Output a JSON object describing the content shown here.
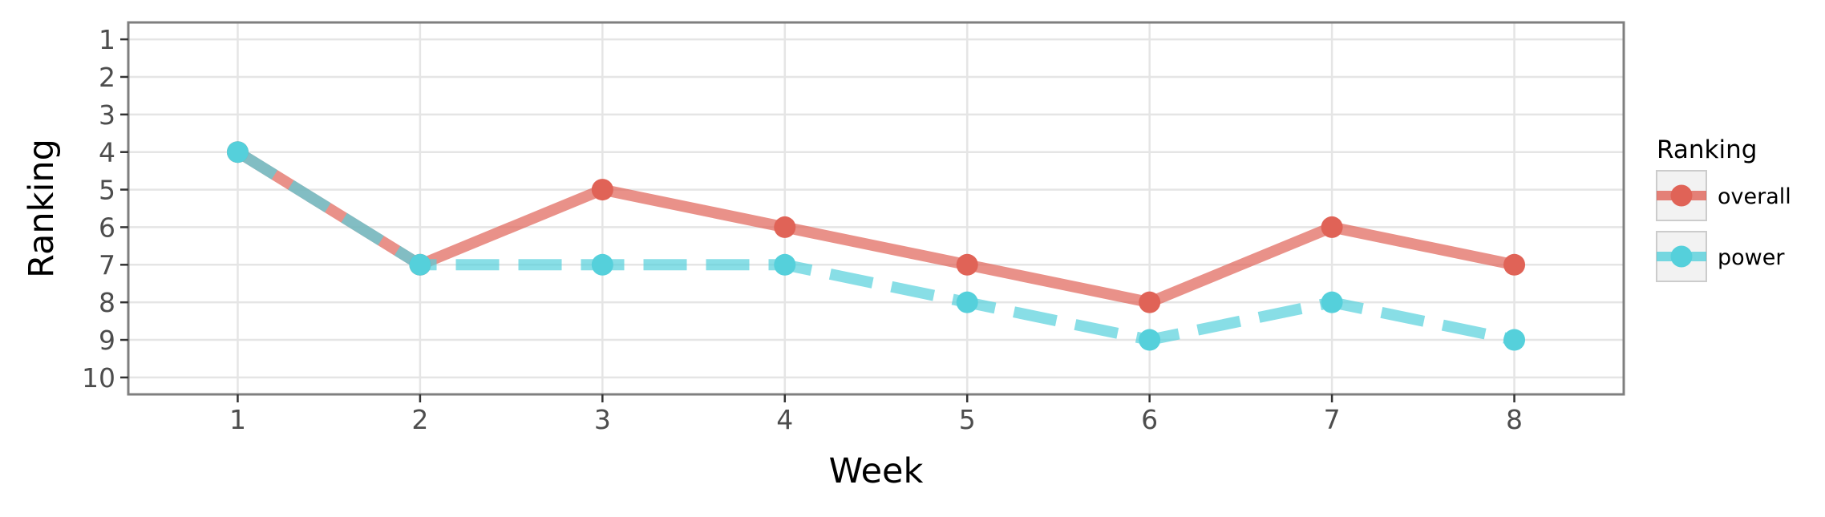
{
  "chart_data": {
    "type": "line",
    "xlabel": "Week",
    "ylabel": "Ranking",
    "x": [
      1,
      2,
      3,
      4,
      5,
      6,
      7,
      8
    ],
    "x_ticks": [
      "1",
      "2",
      "3",
      "4",
      "5",
      "6",
      "7",
      "8"
    ],
    "y_ticks": [
      "1",
      "2",
      "3",
      "4",
      "5",
      "6",
      "7",
      "8",
      "9",
      "10"
    ],
    "xlim": [
      0.4,
      8.6
    ],
    "ylim": [
      10.45,
      0.55
    ],
    "y_reversed": true,
    "grid": true,
    "legend": {
      "title": "Ranking",
      "placement": "right"
    },
    "series": [
      {
        "name": "overall",
        "values": [
          4,
          7,
          5,
          6,
          7,
          8,
          6,
          7
        ],
        "color": "#e06357",
        "line_style": "solid"
      },
      {
        "name": "power",
        "values": [
          4,
          7,
          7,
          7,
          8,
          9,
          8,
          9
        ],
        "color": "#55d0db",
        "line_style": "dashed"
      }
    ]
  }
}
